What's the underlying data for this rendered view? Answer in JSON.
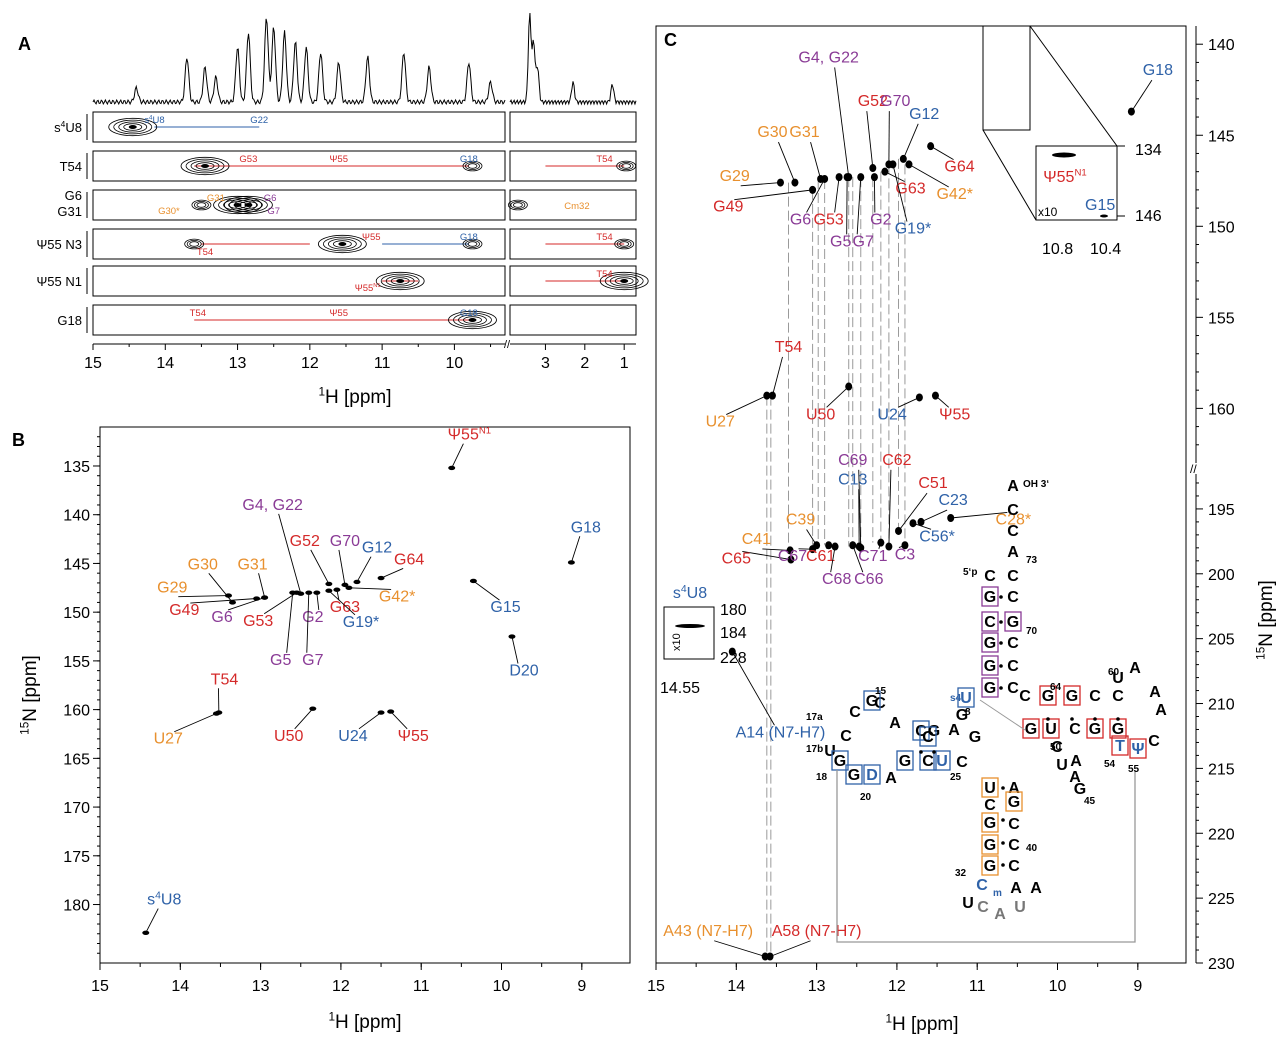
{
  "colors": {
    "purple": "#8a3b96",
    "red": "#d42a2a",
    "blue": "#2f62a8",
    "orange": "#e8902e",
    "black": "#000000",
    "gray": "#777777"
  },
  "panel_letters": [
    "A",
    "B",
    "C"
  ],
  "chart_data": [
    {
      "panel": "A",
      "type": "line",
      "xlabel_sup": "1",
      "xlabel": "H [ppm]",
      "x_left_ticks": [
        15,
        14,
        13,
        12,
        11,
        10
      ],
      "x_right_ticks": [
        3,
        2,
        1
      ],
      "xlim_left": [
        15,
        9.3
      ],
      "xlim_right": [
        3.9,
        0.7
      ],
      "strips": [
        {
          "label": "s4U8",
          "peak_labels": [
            {
              "text": "s4U8",
              "h": 14.15,
              "color": "blue"
            },
            {
              "text": "G22",
              "h": 12.7,
              "color": "blue"
            }
          ]
        },
        {
          "label": "T54",
          "peak_labels": [
            {
              "text": "G53",
              "h": 12.85,
              "color": "red"
            },
            {
              "text": "Ψ55",
              "h": 11.6,
              "color": "red"
            },
            {
              "text": "G18",
              "h": 9.8,
              "color": "blue"
            },
            {
              "text": "T54",
              "h": 1.5,
              "color": "red"
            }
          ]
        },
        {
          "label": "G6 / G31",
          "label_lines": [
            "G6",
            "G31"
          ],
          "peak_labels": [
            {
              "text": "G31",
              "h": 13.3,
              "color": "orange"
            },
            {
              "text": "G6",
              "h": 12.55,
              "color": "purple"
            },
            {
              "text": "G30*",
              "h": 13.95,
              "color": "orange"
            },
            {
              "text": "G7",
              "h": 12.5,
              "color": "purple"
            },
            {
              "text": "Cm32",
              "h": 2.2,
              "color": "orange"
            }
          ]
        },
        {
          "label": "Ψ55 N3",
          "peak_labels": [
            {
              "text": "Ψ55",
              "h": 11.15,
              "color": "red"
            },
            {
              "text": "G18",
              "h": 9.8,
              "color": "blue"
            },
            {
              "text": "T54",
              "h": 13.45,
              "color": "red"
            },
            {
              "text": "T54",
              "h": 1.5,
              "color": "red"
            }
          ]
        },
        {
          "label": "Ψ55 N1",
          "peak_labels": [
            {
              "text": "Ψ55N1",
              "h": 11.2,
              "color": "red"
            },
            {
              "text": "T54",
              "h": 1.5,
              "color": "red"
            }
          ]
        },
        {
          "label": "G18",
          "peak_labels": [
            {
              "text": "T54",
              "h": 13.55,
              "color": "red"
            },
            {
              "text": "Ψ55",
              "h": 11.6,
              "color": "red"
            },
            {
              "text": "G18",
              "h": 9.8,
              "color": "blue"
            }
          ]
        }
      ]
    },
    {
      "panel": "B",
      "type": "scatter",
      "xlabel_sup": "1",
      "xlabel": "H [ppm]",
      "ylabel_sup": "15",
      "ylabel": "N [ppm]",
      "xlim": [
        15,
        8.4
      ],
      "ylim": [
        131,
        186
      ],
      "x_ticks": [
        15,
        14,
        13,
        12,
        11,
        10,
        9
      ],
      "y_ticks": [
        135,
        140,
        145,
        150,
        155,
        160,
        165,
        170,
        175,
        180
      ],
      "peaks": [
        {
          "label": "Ψ55N1",
          "h": 10.62,
          "n": 135.2,
          "color": "red",
          "lx": 10.4,
          "ly": 132.3
        },
        {
          "label": "G4, G22",
          "h": 12.5,
          "n": 148.1,
          "color": "purple",
          "lx": 12.85,
          "ly": 139.5
        },
        {
          "label": "G18",
          "h": 9.13,
          "n": 144.9,
          "color": "blue",
          "lx": 8.95,
          "ly": 141.8
        },
        {
          "label": "G52",
          "h": 12.15,
          "n": 147.1,
          "color": "red",
          "lx": 12.45,
          "ly": 143.2
        },
        {
          "label": "G70",
          "h": 11.95,
          "n": 147.2,
          "color": "purple",
          "lx": 11.95,
          "ly": 143.2
        },
        {
          "label": "G12",
          "h": 11.8,
          "n": 146.9,
          "color": "blue",
          "lx": 11.55,
          "ly": 143.9
        },
        {
          "label": "G64",
          "h": 11.5,
          "n": 146.5,
          "color": "red",
          "lx": 11.15,
          "ly": 145.1
        },
        {
          "label": "G30",
          "h": 13.35,
          "n": 149.0,
          "color": "orange",
          "lx": 13.72,
          "ly": 145.6
        },
        {
          "label": "G31",
          "h": 12.95,
          "n": 148.5,
          "color": "orange",
          "lx": 13.1,
          "ly": 145.6
        },
        {
          "label": "G29",
          "h": 13.4,
          "n": 148.3,
          "color": "orange",
          "lx": 14.1,
          "ly": 148.0
        },
        {
          "label": "G42*",
          "h": 11.9,
          "n": 147.5,
          "color": "orange",
          "lx": 11.3,
          "ly": 148.9
        },
        {
          "label": "G15",
          "h": 10.35,
          "n": 146.8,
          "color": "blue",
          "lx": 9.95,
          "ly": 150.0
        },
        {
          "label": "G49",
          "h": 13.05,
          "n": 148.6,
          "color": "red",
          "lx": 13.95,
          "ly": 150.3
        },
        {
          "label": "G6",
          "h": 12.95,
          "n": 148.5,
          "color": "purple",
          "lx": 13.48,
          "ly": 151.0
        },
        {
          "label": "G53",
          "h": 12.55,
          "n": 148.0,
          "color": "red",
          "lx": 13.03,
          "ly": 151.4
        },
        {
          "label": "G2",
          "h": 12.3,
          "n": 148.0,
          "color": "purple",
          "lx": 12.35,
          "ly": 151.0
        },
        {
          "label": "G63",
          "h": 12.05,
          "n": 147.7,
          "color": "red",
          "lx": 11.95,
          "ly": 150.0
        },
        {
          "label": "G19*",
          "h": 12.15,
          "n": 147.8,
          "color": "blue",
          "lx": 11.75,
          "ly": 151.5
        },
        {
          "label": "D20",
          "h": 9.87,
          "n": 152.5,
          "color": "blue",
          "lx": 9.72,
          "ly": 156.5
        },
        {
          "label": "G5",
          "h": 12.6,
          "n": 148.0,
          "color": "purple",
          "lx": 12.75,
          "ly": 155.4
        },
        {
          "label": "G7",
          "h": 12.4,
          "n": 148.0,
          "color": "purple",
          "lx": 12.35,
          "ly": 155.4
        },
        {
          "label": "T54",
          "h": 13.52,
          "n": 160.3,
          "color": "red",
          "lx": 13.45,
          "ly": 157.4
        },
        {
          "label": "U27",
          "h": 13.55,
          "n": 160.4,
          "color": "orange",
          "lx": 14.15,
          "ly": 163.5
        },
        {
          "label": "U50",
          "h": 12.35,
          "n": 159.9,
          "color": "red",
          "lx": 12.65,
          "ly": 163.2
        },
        {
          "label": "U24",
          "h": 11.5,
          "n": 160.3,
          "color": "blue",
          "lx": 11.85,
          "ly": 163.2
        },
        {
          "label": "Ψ55",
          "h": 11.38,
          "n": 160.2,
          "color": "red",
          "lx": 11.1,
          "ly": 163.2
        },
        {
          "label": "s4U8",
          "h": 14.43,
          "n": 182.9,
          "color": "blue",
          "lx": 14.2,
          "ly": 180.0
        }
      ]
    },
    {
      "panel": "C",
      "type": "scatter",
      "xlabel_sup": "1",
      "xlabel": "H [ppm]",
      "ylabel_sup": "15",
      "ylabel": "N [ppm]",
      "xlim": [
        15,
        8.4
      ],
      "x_ticks": [
        15,
        14,
        13,
        12,
        11,
        10,
        9
      ],
      "y_ticks_upper": [
        140,
        145,
        150,
        155,
        160
      ],
      "y_ticks_lower": [
        195,
        200,
        205,
        210,
        215,
        220,
        225,
        230
      ],
      "ylim_upper": [
        139,
        163
      ],
      "ylim_lower": [
        192,
        230
      ],
      "peaks": [
        {
          "label": "G4, G22",
          "h": 12.6,
          "n": 147.3,
          "color": "purple",
          "lx": 12.85,
          "ly": 141.0
        },
        {
          "label": "G18",
          "h": 9.08,
          "n": 143.7,
          "color": "blue",
          "lx": 8.75,
          "ly": 141.7
        },
        {
          "label": "G52",
          "h": 12.3,
          "n": 146.8,
          "color": "red",
          "lx": 12.3,
          "ly": 143.4
        },
        {
          "label": "G70",
          "h": 12.1,
          "n": 146.6,
          "color": "purple",
          "lx": 12.02,
          "ly": 143.4
        },
        {
          "label": "G12",
          "h": 11.92,
          "n": 146.3,
          "color": "blue",
          "lx": 11.66,
          "ly": 144.1
        },
        {
          "label": "G30",
          "h": 13.27,
          "n": 147.6,
          "color": "orange",
          "lx": 13.55,
          "ly": 145.1
        },
        {
          "label": "G31",
          "h": 12.95,
          "n": 147.4,
          "color": "orange",
          "lx": 13.15,
          "ly": 145.1
        },
        {
          "label": "G64",
          "h": 11.58,
          "n": 145.6,
          "color": "red",
          "lx": 11.22,
          "ly": 147.0
        },
        {
          "label": "G29",
          "h": 13.45,
          "n": 147.6,
          "color": "orange",
          "lx": 14.02,
          "ly": 147.5
        },
        {
          "label": "G63",
          "h": 12.15,
          "n": 147.0,
          "color": "red",
          "lx": 11.83,
          "ly": 148.2
        },
        {
          "label": "G42*",
          "h": 11.85,
          "n": 146.6,
          "color": "orange",
          "lx": 11.28,
          "ly": 148.5
        },
        {
          "label": "G49",
          "h": 13.05,
          "n": 148.0,
          "color": "red",
          "lx": 14.1,
          "ly": 149.2
        },
        {
          "label": "G6",
          "h": 12.9,
          "n": 147.4,
          "color": "purple",
          "lx": 13.2,
          "ly": 149.9
        },
        {
          "label": "G53",
          "h": 12.72,
          "n": 147.3,
          "color": "red",
          "lx": 12.85,
          "ly": 149.9
        },
        {
          "label": "G2",
          "h": 12.28,
          "n": 147.3,
          "color": "purple",
          "lx": 12.2,
          "ly": 149.9
        },
        {
          "label": "G19*",
          "h": 12.05,
          "n": 146.6,
          "color": "blue",
          "lx": 11.8,
          "ly": 150.4
        },
        {
          "label": "G5",
          "h": 12.62,
          "n": 147.3,
          "color": "purple",
          "lx": 12.7,
          "ly": 151.1
        },
        {
          "label": "G7",
          "h": 12.45,
          "n": 147.3,
          "color": "purple",
          "lx": 12.42,
          "ly": 151.1
        },
        {
          "label": "T54",
          "h": 13.55,
          "n": 159.3,
          "color": "red",
          "lx": 13.35,
          "ly": 156.9
        },
        {
          "label": "U27",
          "h": 13.62,
          "n": 159.3,
          "color": "orange",
          "lx": 14.2,
          "ly": 161.0
        },
        {
          "label": "U50",
          "h": 12.6,
          "n": 158.8,
          "color": "red",
          "lx": 12.95,
          "ly": 160.6
        },
        {
          "label": "U24",
          "h": 11.72,
          "n": 159.4,
          "color": "blue",
          "lx": 12.06,
          "ly": 160.6
        },
        {
          "label": "Ψ55",
          "h": 11.52,
          "n": 159.3,
          "color": "red",
          "lx": 11.28,
          "ly": 160.6
        },
        {
          "label": "C69",
          "h": 12.45,
          "n": 198.0,
          "color": "purple",
          "lx": 12.55,
          "ly": 191.6
        },
        {
          "label": "C62",
          "h": 12.1,
          "n": 197.9,
          "color": "red",
          "lx": 12.0,
          "ly": 191.6
        },
        {
          "label": "C13",
          "h": 12.47,
          "n": 197.9,
          "color": "blue",
          "lx": 12.55,
          "ly": 193.1
        },
        {
          "label": "C51",
          "h": 11.98,
          "n": 196.7,
          "color": "red",
          "lx": 11.55,
          "ly": 193.4
        },
        {
          "label": "C23",
          "h": 11.7,
          "n": 196.0,
          "color": "blue",
          "lx": 11.3,
          "ly": 194.7
        },
        {
          "label": "C39",
          "h": 13.0,
          "n": 197.8,
          "color": "orange",
          "lx": 13.2,
          "ly": 196.2
        },
        {
          "label": "C28*",
          "h": 11.33,
          "n": 195.7,
          "color": "orange",
          "lx": 10.55,
          "ly": 196.2
        },
        {
          "label": "C56*",
          "h": 11.8,
          "n": 196.1,
          "color": "blue",
          "lx": 11.5,
          "ly": 197.5
        },
        {
          "label": "C41",
          "h": 13.33,
          "n": 198.2,
          "color": "orange",
          "lx": 13.75,
          "ly": 197.7
        },
        {
          "label": "C3",
          "h": 11.9,
          "n": 197.8,
          "color": "purple",
          "lx": 11.9,
          "ly": 198.9
        },
        {
          "label": "C65",
          "h": 13.32,
          "n": 198.9,
          "color": "red",
          "lx": 14.0,
          "ly": 199.2
        },
        {
          "label": "C67",
          "h": 13.05,
          "n": 198.1,
          "color": "purple",
          "lx": 13.3,
          "ly": 199.0
        },
        {
          "label": "C61",
          "h": 12.85,
          "n": 197.8,
          "color": "red",
          "lx": 12.95,
          "ly": 199.0
        },
        {
          "label": "C71",
          "h": 12.2,
          "n": 197.6,
          "color": "purple",
          "lx": 12.3,
          "ly": 199.0
        },
        {
          "label": "C68",
          "h": 12.77,
          "n": 197.9,
          "color": "purple",
          "lx": 12.75,
          "ly": 200.8
        },
        {
          "label": "C66",
          "h": 12.55,
          "n": 197.8,
          "color": "purple",
          "lx": 12.35,
          "ly": 200.8
        },
        {
          "label": "A14 (N7-H7)",
          "h": 14.05,
          "n": 206.0,
          "color": "blue",
          "lx": 13.45,
          "ly": 212.6
        },
        {
          "label": "A43 (N7-H7)",
          "h": 13.64,
          "n": 229.5,
          "color": "orange",
          "lx": 14.35,
          "ly": 227.9
        },
        {
          "label": "A58 (N7-H7)",
          "h": 13.58,
          "n": 229.5,
          "color": "red",
          "lx": 13.0,
          "ly": 227.9
        }
      ],
      "insets": [
        {
          "name": "Ψ55N1 inset",
          "peak": "Ψ55N1",
          "peak2": "G15",
          "scale": "x10",
          "x_ticks": [
            "10.8",
            "10.4"
          ],
          "y_ticks": [
            "134",
            "146"
          ]
        },
        {
          "name": "s4U8 inset",
          "peak": "s4U8",
          "scale": "x10",
          "x_ticks": [
            "14.55"
          ],
          "y_ticks": [
            "180",
            "184",
            "228"
          ]
        }
      ]
    }
  ],
  "structure": {
    "labels": {
      "oh3": "OH 3‘",
      "five_p": "5‘p",
      "n73": "73",
      "n70": "70",
      "n64": "64",
      "n60": "60",
      "n50": "50",
      "n54": "54",
      "n55": "55",
      "n45": "45",
      "n40": "40",
      "n32": "32",
      "n25": "25",
      "n20": "20",
      "n18": "18",
      "n17a": "17a",
      "n17b": "17b",
      "n15": "15",
      "n8": "8",
      "cm_sub": "m",
      "s4_pre": "s4"
    }
  }
}
